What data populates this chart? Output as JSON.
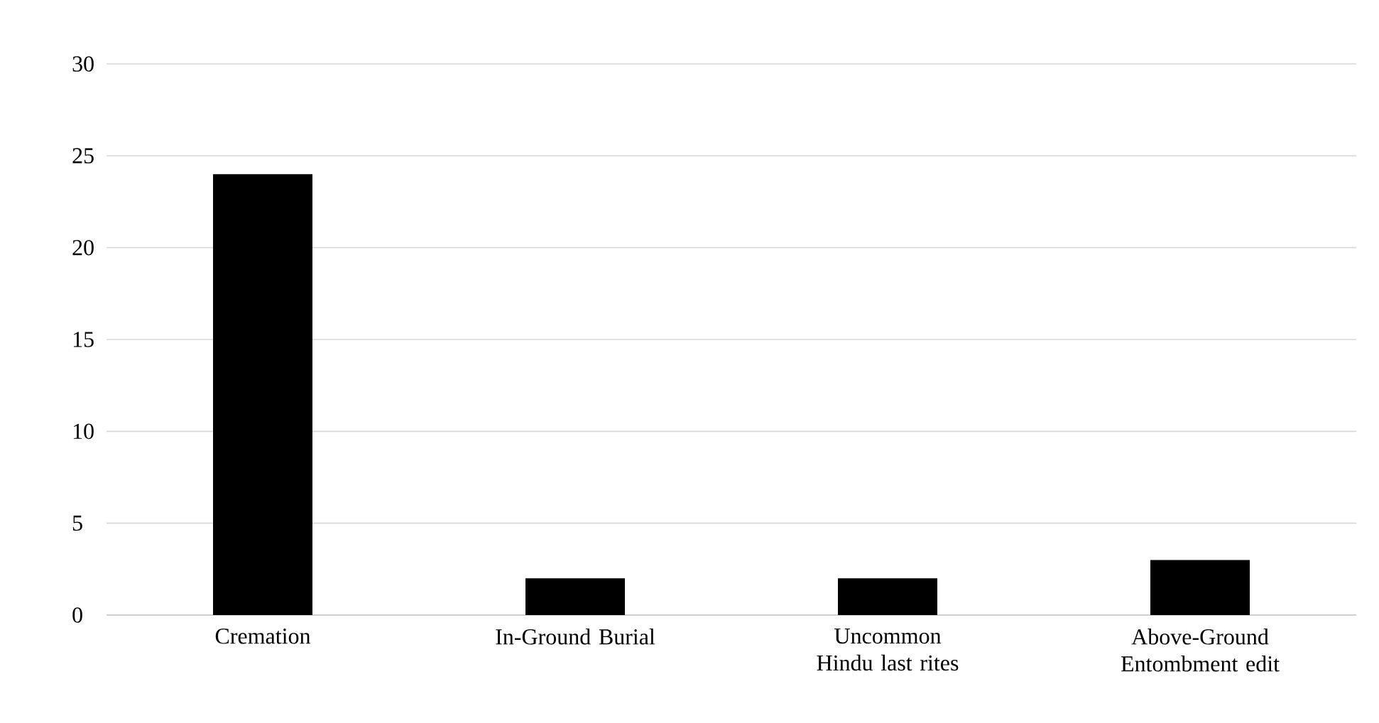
{
  "chart_data": {
    "type": "bar",
    "categories": [
      "Cremation",
      "In-Ground Burial",
      "Uncommon Hindu last rites",
      "Above-Ground Entombment edit"
    ],
    "values": [
      24,
      2,
      2,
      3
    ],
    "color": "#000000",
    "ylim": [
      0,
      30
    ],
    "yticks": [
      0,
      5,
      10,
      15,
      20,
      25,
      30
    ],
    "grid": "y"
  }
}
